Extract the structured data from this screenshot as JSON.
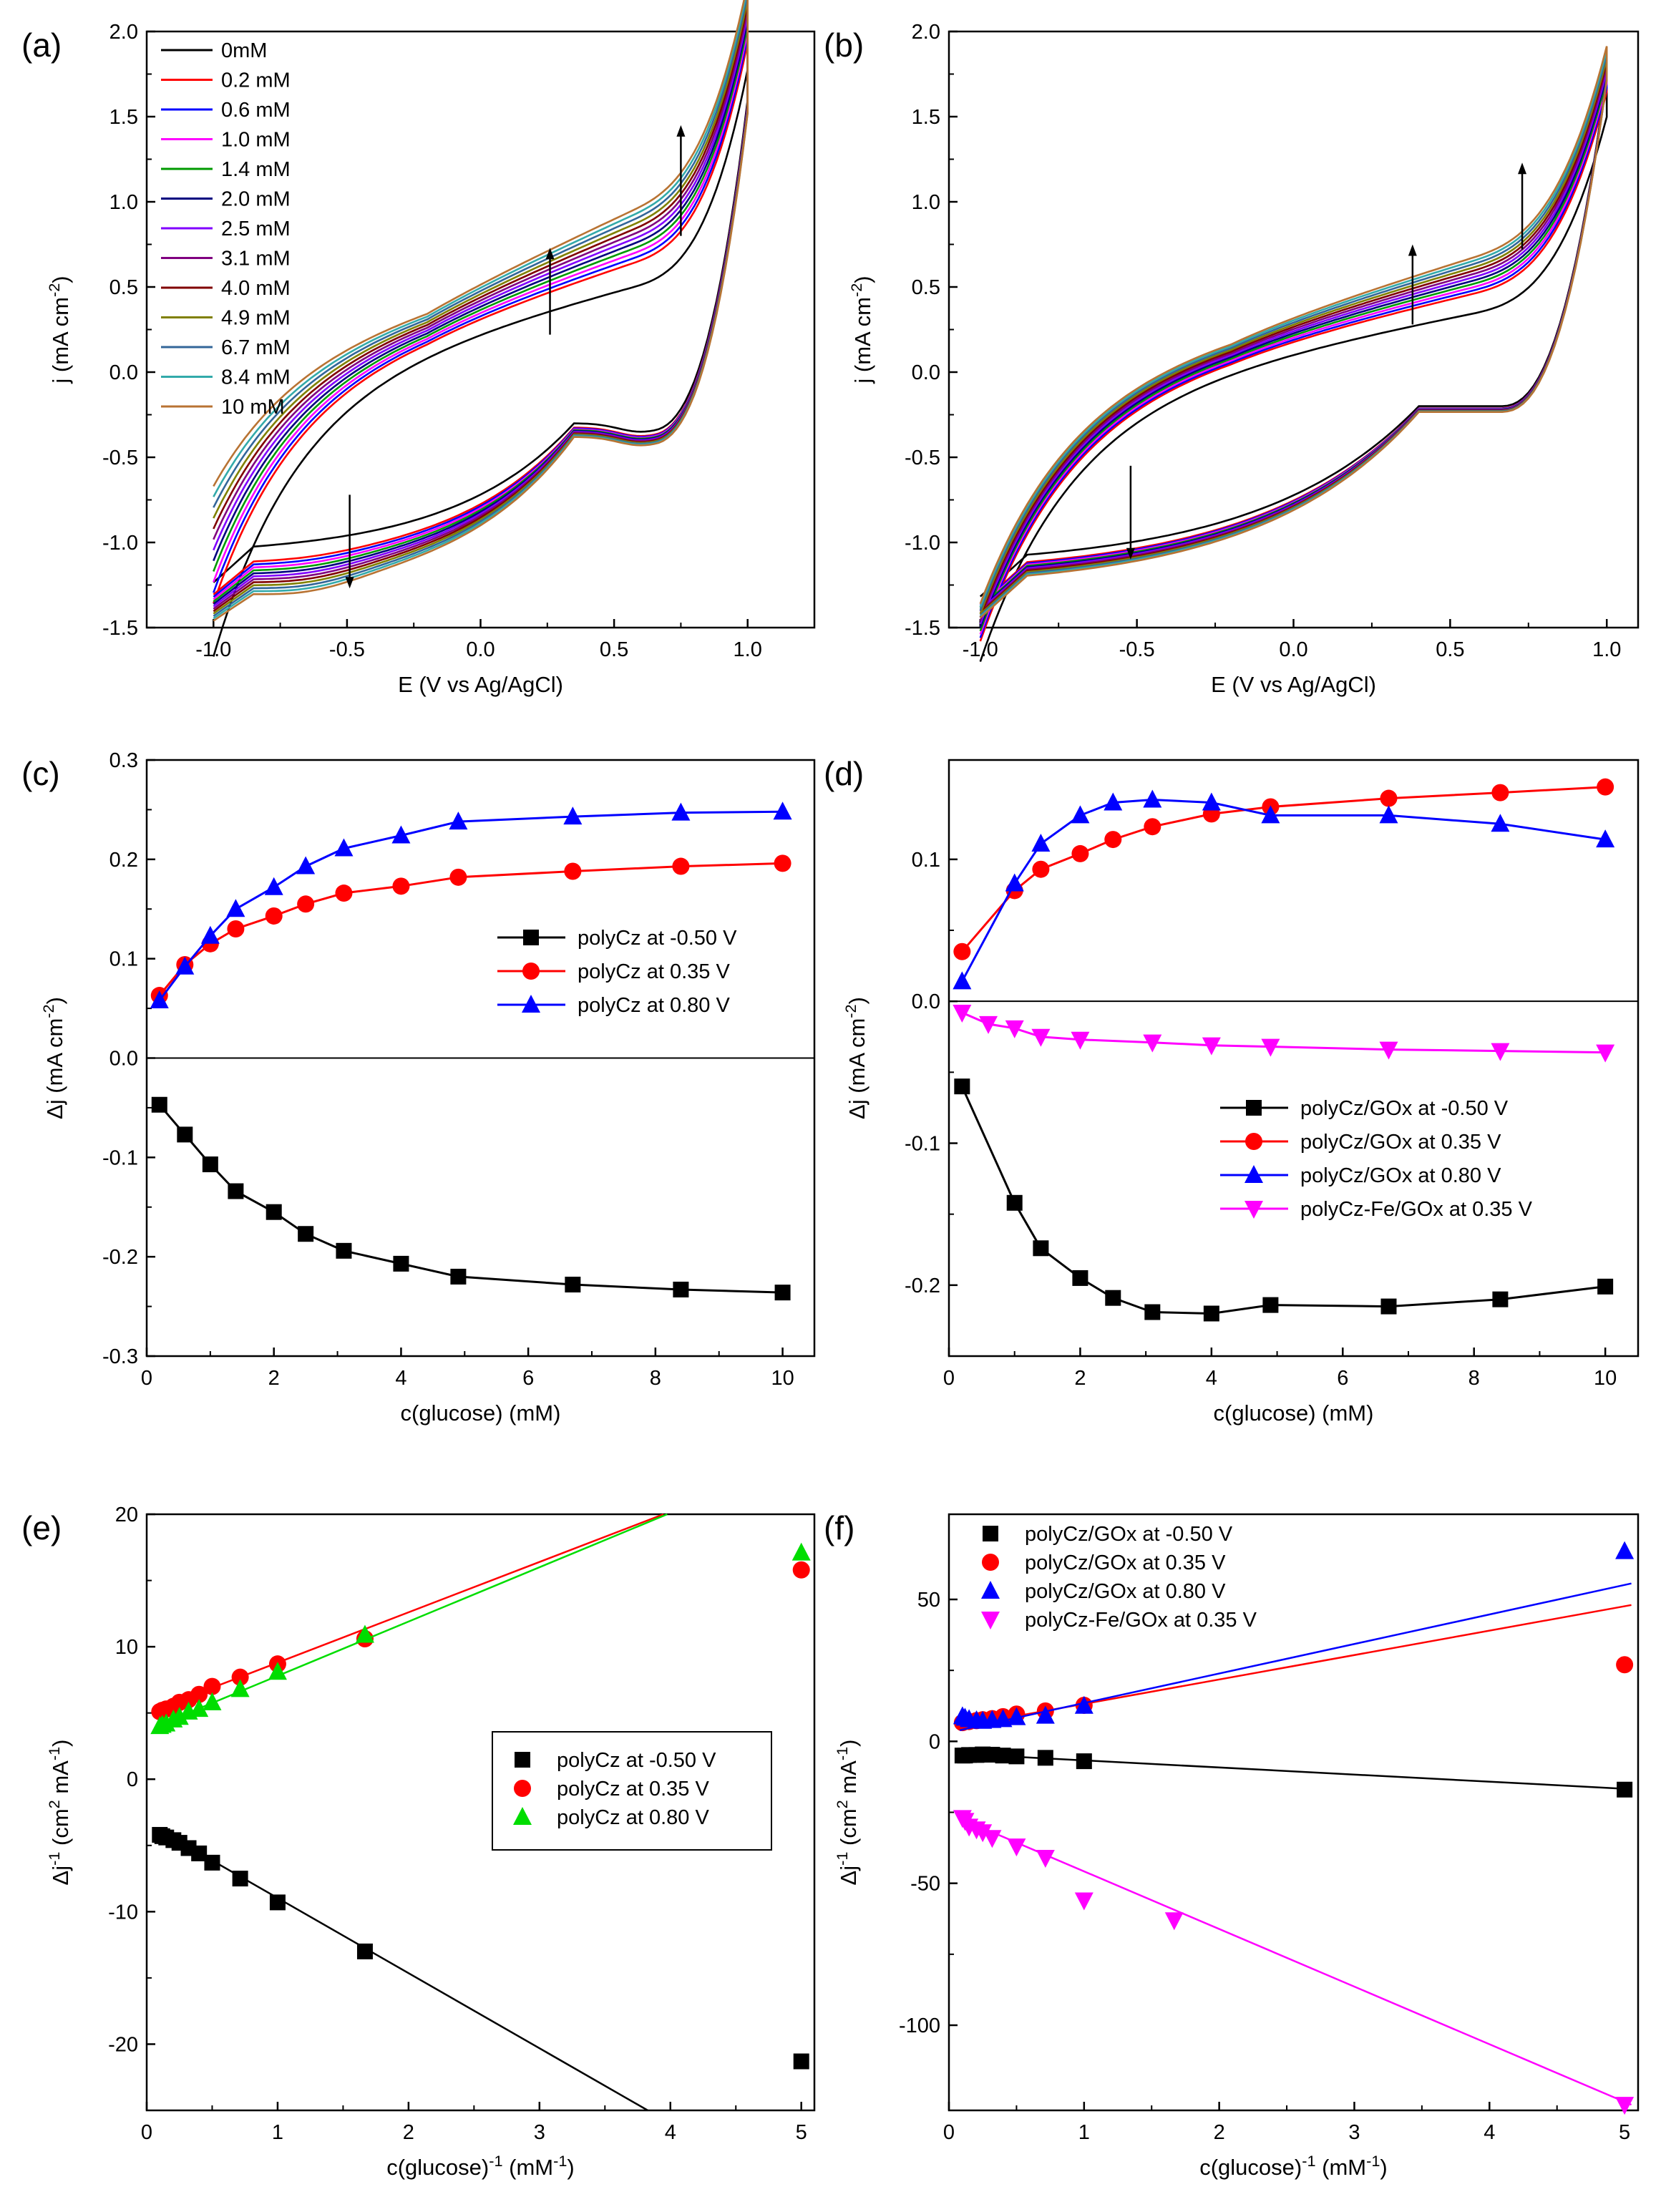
{
  "colors": {
    "black": "#000000",
    "red": "#ff0000",
    "blue": "#0000ff",
    "green": "#00dd00",
    "magenta": "#ff00ff",
    "navy": "#00007f",
    "violet": "#8000ff",
    "purple": "#800080",
    "darkred": "#800000",
    "olive": "#808000",
    "steel": "#336699",
    "teal": "#33aaaa",
    "brown": "#b87333"
  },
  "chart_data": [
    {
      "panel": "(a)",
      "type": "line",
      "xlabel": "E (V vs Ag/AgCl)",
      "ylabel": "j (mA cm-2)",
      "xlim": [
        -1.25,
        1.25
      ],
      "ylim": [
        -1.5,
        2.0
      ],
      "xticks": [
        "-1.0",
        "-0.5",
        "0.0",
        "0.5",
        "1.0"
      ],
      "yticks": [
        "-1.5",
        "-1.0",
        "-0.5",
        "0.0",
        "0.5",
        "1.0",
        "1.5",
        "2.0"
      ],
      "legend": "top-left",
      "series": [
        {
          "name": "0mM",
          "color": "#000000"
        },
        {
          "name": "0.2 mM",
          "color": "#ff0000"
        },
        {
          "name": "0.6 mM",
          "color": "#0000ff"
        },
        {
          "name": "1.0 mM",
          "color": "#ff00ff"
        },
        {
          "name": "1.4 mM",
          "color": "#009900"
        },
        {
          "name": "2.0 mM",
          "color": "#00007f"
        },
        {
          "name": "2.5 mM",
          "color": "#8000ff"
        },
        {
          "name": "3.1 mM",
          "color": "#800080"
        },
        {
          "name": "4.0 mM",
          "color": "#800000"
        },
        {
          "name": "4.9 mM",
          "color": "#808000"
        },
        {
          "name": "6.7 mM",
          "color": "#336699"
        },
        {
          "name": "8.4 mM",
          "color": "#33aaaa"
        },
        {
          "name": "10 mM",
          "color": "#b87333"
        }
      ],
      "arrows": [
        {
          "x": 0.75,
          "y1": 0.8,
          "y2": 1.45
        },
        {
          "x": 0.26,
          "y1": 0.22,
          "y2": 0.73
        },
        {
          "x": -0.49,
          "y1": -0.72,
          "y2": -1.27
        }
      ]
    },
    {
      "panel": "(b)",
      "type": "line",
      "xlabel": "E (V vs Ag/AgCl)",
      "ylabel": "j (mA cm-2)",
      "xlim": [
        -1.1,
        1.1
      ],
      "ylim": [
        -1.5,
        2.0
      ],
      "xticks": [
        "-1.0",
        "-0.5",
        "0.0",
        "0.5",
        "1.0"
      ],
      "yticks": [
        "-1.5",
        "-1.0",
        "-0.5",
        "0.0",
        "0.5",
        "1.0",
        "1.5",
        "2.0"
      ],
      "arrows": [
        {
          "x": 0.73,
          "y1": 0.72,
          "y2": 1.23
        },
        {
          "x": 0.38,
          "y1": 0.28,
          "y2": 0.75
        },
        {
          "x": -0.52,
          "y1": -0.55,
          "y2": -1.1
        }
      ]
    },
    {
      "panel": "(c)",
      "type": "line",
      "xlabel": "c(glucose) (mM)",
      "ylabel": "Δj (mA cm-2)",
      "xlim": [
        0,
        10.5
      ],
      "ylim": [
        -0.3,
        0.3
      ],
      "xticks": [
        "0",
        "2",
        "4",
        "6",
        "8",
        "10"
      ],
      "yticks": [
        "-0.3",
        "-0.2",
        "-0.1",
        "0.0",
        "0.1",
        "0.2",
        "0.3"
      ],
      "zero_line": true,
      "legend": "center-right",
      "x": [
        0.2,
        0.6,
        1.0,
        1.4,
        2.0,
        2.5,
        3.1,
        4.0,
        4.9,
        6.7,
        8.4,
        10.0
      ],
      "series": [
        {
          "name": "polyCz at -0.50 V",
          "color": "#000000",
          "marker": "square",
          "values": [
            -0.047,
            -0.077,
            -0.107,
            -0.134,
            -0.155,
            -0.177,
            -0.194,
            -0.207,
            -0.22,
            -0.228,
            -0.233,
            -0.236
          ]
        },
        {
          "name": "polyCz at 0.35 V",
          "color": "#ff0000",
          "marker": "circle",
          "values": [
            0.063,
            0.094,
            0.115,
            0.13,
            0.143,
            0.155,
            0.166,
            0.173,
            0.182,
            0.188,
            0.193,
            0.196
          ]
        },
        {
          "name": "polyCz at 0.80 V",
          "color": "#0000ff",
          "marker": "triangle",
          "values": [
            0.058,
            0.092,
            0.123,
            0.15,
            0.172,
            0.193,
            0.211,
            0.224,
            0.238,
            0.243,
            0.247,
            0.248
          ]
        }
      ]
    },
    {
      "panel": "(d)",
      "type": "line",
      "xlabel": "c(glucose) (mM)",
      "ylabel": "Δj (mA cm-2)",
      "xlim": [
        0,
        10.5
      ],
      "ylim": [
        -0.25,
        0.17
      ],
      "xticks": [
        "0",
        "2",
        "4",
        "6",
        "8",
        "10"
      ],
      "yticks": [
        "-0.2",
        "-0.1",
        "0.0",
        "0.1"
      ],
      "ytick_values": [
        -0.2,
        -0.1,
        0.0,
        0.1
      ],
      "zero_line": true,
      "legend": "lower-right",
      "x": [
        0.2,
        1.0,
        1.4,
        2.0,
        2.5,
        3.1,
        4.0,
        4.9,
        6.7,
        8.4,
        10.0
      ],
      "series": [
        {
          "name": "polyCz/GOx at -0.50 V",
          "color": "#000000",
          "marker": "square",
          "values": [
            -0.06,
            -0.142,
            -0.174,
            -0.195,
            -0.209,
            -0.219,
            -0.22,
            -0.214,
            -0.215,
            -0.21,
            -0.201
          ]
        },
        {
          "name": "polyCz/GOx at 0.35 V",
          "color": "#ff0000",
          "marker": "circle",
          "values": [
            0.035,
            0.078,
            0.093,
            0.104,
            0.114,
            0.123,
            0.132,
            0.137,
            0.143,
            0.147,
            0.151
          ]
        },
        {
          "name": "polyCz/GOx at 0.80 V",
          "color": "#0000ff",
          "marker": "triangle",
          "values": [
            0.014,
            0.083,
            0.111,
            0.131,
            0.14,
            0.142,
            0.14,
            0.131,
            0.131,
            0.125,
            0.114
          ]
        },
        {
          "name": "polyCz-Fe/GOx at 0.35 V",
          "color": "#ff00ff",
          "marker": "triangle-down",
          "x": [
            0.2,
            0.6,
            1.0,
            1.4,
            2.0,
            3.1,
            4.0,
            4.9,
            6.7,
            8.4,
            10.0
          ],
          "values": [
            -0.008,
            -0.016,
            -0.019,
            -0.025,
            -0.027,
            -0.029,
            -0.031,
            -0.032,
            -0.034,
            -0.035,
            -0.036
          ]
        }
      ]
    },
    {
      "panel": "(e)",
      "type": "scatter",
      "xlabel": "c(glucose)-1 (mM-1)",
      "ylabel": "Δj-1 (cm2 mA-1)",
      "xlim": [
        0,
        5.1
      ],
      "ylim": [
        -25,
        20
      ],
      "xticks": [
        "0",
        "1",
        "2",
        "3",
        "4",
        "5"
      ],
      "yticks": [
        "-20",
        "-10",
        "0",
        "10",
        "20"
      ],
      "ytick_values": [
        -20,
        -10,
        0,
        10,
        20
      ],
      "legend": "center-right",
      "series": [
        {
          "name": "polyCz at -0.50 V",
          "color": "#000000",
          "marker": "square",
          "x": [
            0.1,
            0.119,
            0.149,
            0.204,
            0.25,
            0.32,
            0.4,
            0.5,
            0.714,
            1.0,
            1.667,
            5.0
          ],
          "values": [
            -4.2,
            -4.3,
            -4.4,
            -4.6,
            -4.8,
            -5.2,
            -5.6,
            -6.3,
            -7.5,
            -9.3,
            -13.0,
            -21.3
          ],
          "fit": [
            -3.3,
            -5.67
          ]
        },
        {
          "name": "polyCz at 0.35 V",
          "color": "#ff0000",
          "marker": "circle",
          "x": [
            0.1,
            0.119,
            0.149,
            0.204,
            0.25,
            0.32,
            0.4,
            0.5,
            0.714,
            1.0,
            1.667,
            5.0
          ],
          "values": [
            5.1,
            5.2,
            5.3,
            5.5,
            5.8,
            6.0,
            6.4,
            7.0,
            7.7,
            8.7,
            10.6,
            15.8
          ],
          "fit": [
            5.0,
            3.8
          ]
        },
        {
          "name": "polyCz at 0.80 V",
          "color": "#00dd00",
          "marker": "triangle",
          "x": [
            0.1,
            0.119,
            0.149,
            0.204,
            0.25,
            0.32,
            0.4,
            0.5,
            0.714,
            1.0,
            1.667,
            5.0
          ],
          "values": [
            4.0,
            4.1,
            4.2,
            4.5,
            4.7,
            5.1,
            5.3,
            5.8,
            6.8,
            8.1,
            10.9,
            17.1
          ],
          "fit": [
            3.7,
            4.1
          ]
        }
      ]
    },
    {
      "panel": "(f)",
      "type": "scatter",
      "xlabel": "c(glucose)-1 (mM-1)",
      "ylabel": "Δj-1 (cm2 mA-1)",
      "xlim": [
        0,
        5.1
      ],
      "ylim": [
        -130,
        80
      ],
      "xticks": [
        "0",
        "1",
        "2",
        "3",
        "4",
        "5"
      ],
      "yticks": [
        "-100",
        "-50",
        "0",
        "50"
      ],
      "ytick_values": [
        -100,
        -50,
        0,
        50
      ],
      "legend": "top-left",
      "series": [
        {
          "name": "polyCz/GOx at -0.50 V",
          "color": "#000000",
          "marker": "square",
          "x": [
            0.1,
            0.119,
            0.149,
            0.204,
            0.25,
            0.32,
            0.4,
            0.5,
            0.714,
            1.0,
            5.0
          ],
          "values": [
            -5.0,
            -5.0,
            -4.8,
            -4.8,
            -4.6,
            -4.7,
            -5.0,
            -5.3,
            -5.8,
            -7.0,
            -17.0
          ],
          "fit": [
            -4.2,
            -2.5
          ]
        },
        {
          "name": "polyCz/GOx at 0.35 V",
          "color": "#ff0000",
          "marker": "circle",
          "x": [
            0.1,
            0.119,
            0.149,
            0.204,
            0.25,
            0.32,
            0.4,
            0.5,
            0.714,
            1.0,
            5.0
          ],
          "values": [
            6.6,
            7.0,
            7.0,
            7.3,
            7.6,
            8.0,
            8.7,
            9.6,
            10.7,
            12.7,
            27.0
          ],
          "fit": [
            4.6,
            8.6
          ]
        },
        {
          "name": "polyCz/GOx at 0.80 V",
          "color": "#0000ff",
          "marker": "triangle",
          "x": [
            0.1,
            0.119,
            0.149,
            0.204,
            0.25,
            0.32,
            0.4,
            0.5,
            0.714,
            1.0,
            5.0
          ],
          "values": [
            8.8,
            8.3,
            7.8,
            7.4,
            7.2,
            7.5,
            7.8,
            8.5,
            9.0,
            12.5,
            67.0
          ],
          "fit": [
            3.1,
            10.4
          ]
        },
        {
          "name": "polyCz-Fe/GOx at 0.35 V",
          "color": "#ff00ff",
          "marker": "triangle-down",
          "x": [
            0.1,
            0.119,
            0.149,
            0.204,
            0.25,
            0.32,
            0.5,
            0.714,
            1.0,
            1.667,
            5.0
          ],
          "values": [
            -27.0,
            -28.0,
            -30.0,
            -31.0,
            -32.0,
            -34.0,
            -37.0,
            -41.0,
            -56.0,
            -63.0,
            -128.0
          ],
          "fit": [
            -25.5,
            -20.3
          ]
        }
      ]
    }
  ]
}
